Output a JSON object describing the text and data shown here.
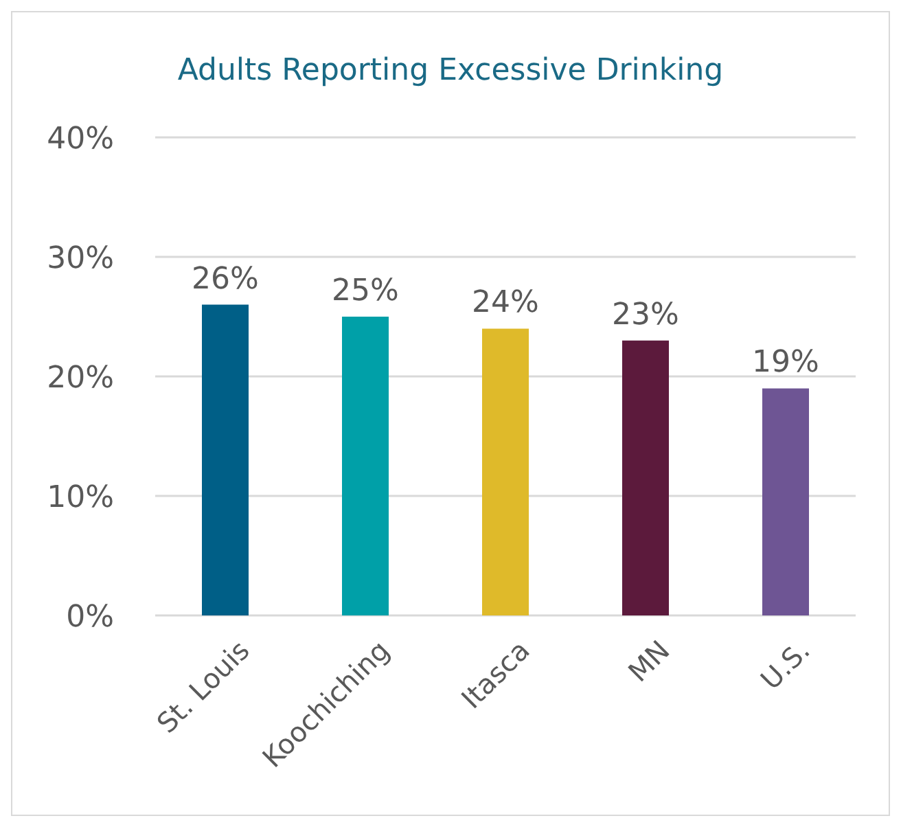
{
  "chart_data": {
    "type": "bar",
    "title": "Adults Reporting Excessive Drinking",
    "categories": [
      "St. Louis",
      "Koochiching",
      "Itasca",
      "MN",
      "U.S."
    ],
    "values": [
      26,
      25,
      24,
      23,
      19
    ],
    "colors": [
      "#005f87",
      "#00a0a8",
      "#dfba2a",
      "#5c1a3c",
      "#6e5594"
    ],
    "value_labels": [
      "26%",
      "25%",
      "24%",
      "23%",
      "19%"
    ],
    "ylim": [
      0,
      40
    ],
    "yticks": [
      {
        "value": 0,
        "label": "0%"
      },
      {
        "value": 10,
        "label": "10%"
      },
      {
        "value": 20,
        "label": "20%"
      },
      {
        "value": 30,
        "label": "30%"
      },
      {
        "value": 40,
        "label": "40%"
      }
    ],
    "grid": "y"
  }
}
